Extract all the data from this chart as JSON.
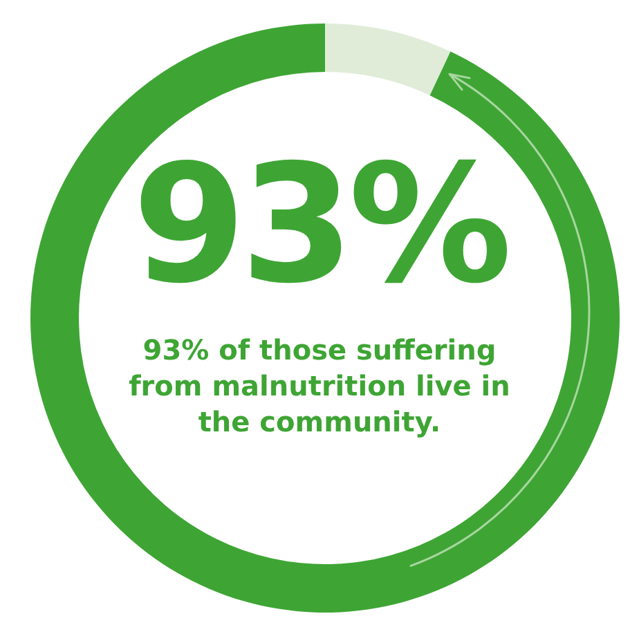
{
  "chart_data": {
    "type": "donut",
    "title": "93%",
    "subtitle": "93% of those suffering from malnutrition live in the community.",
    "categories": [
      null,
      null
    ],
    "values": [
      7,
      93
    ],
    "colors": [
      "#e0ecd8",
      "#3ea534"
    ]
  }
}
